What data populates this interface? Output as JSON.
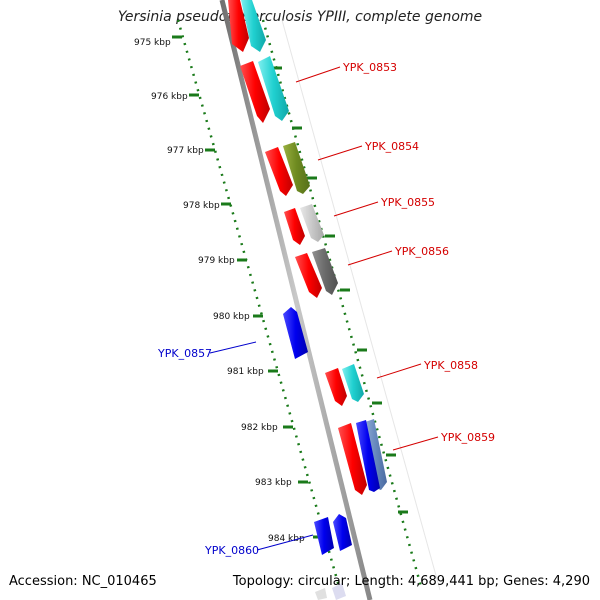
{
  "title": "Yersinia pseudotuberculosis YPIII, complete genome",
  "footer": {
    "accession": "Accession: NC_010465",
    "topology": "Topology: circular; Length: 4,689,441 bp; Genes: 4,290"
  },
  "ticks": [
    "975 kbp",
    "976 kbp",
    "977 kbp",
    "978 kbp",
    "979 kbp",
    "980 kbp",
    "981 kbp",
    "982 kbp",
    "983 kbp",
    "984 kbp"
  ],
  "genes": [
    {
      "label": "YPK_0853",
      "strand": "forward"
    },
    {
      "label": "YPK_0854",
      "strand": "forward"
    },
    {
      "label": "YPK_0855",
      "strand": "forward"
    },
    {
      "label": "YPK_0856",
      "strand": "forward"
    },
    {
      "label": "YPK_0857",
      "strand": "reverse"
    },
    {
      "label": "YPK_0858",
      "strand": "forward"
    },
    {
      "label": "YPK_0859",
      "strand": "forward"
    },
    {
      "label": "YPK_0860",
      "strand": "reverse"
    }
  ],
  "colors": {
    "cds": "#ff0000",
    "backbone": "#a0a0a0",
    "ticks": "#1a7a1a",
    "forward_label": "#d40000",
    "reverse_label": "#0000cc",
    "reverse_gene": "#0000ee"
  }
}
